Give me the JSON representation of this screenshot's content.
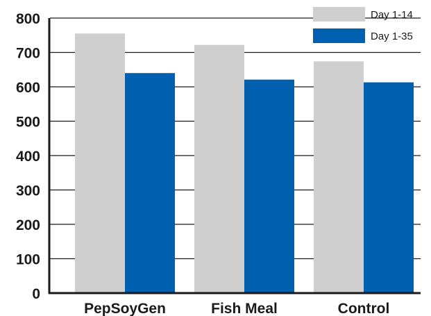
{
  "chart_data": {
    "type": "bar",
    "categories": [
      "PepSoyGen",
      "Fish Meal",
      "Control"
    ],
    "series": [
      {
        "name": "Day 1-14",
        "values": [
          755,
          722,
          674
        ],
        "color": "#cfcfcf"
      },
      {
        "name": "Day 1-35",
        "values": [
          640,
          621,
          613
        ],
        "color": "#0060b0"
      }
    ],
    "ylim": [
      0,
      800
    ],
    "yticks": [
      0,
      100,
      200,
      300,
      400,
      500,
      600,
      700,
      800
    ],
    "grid": true,
    "legend": "top-right",
    "title": "",
    "xlabel": "",
    "ylabel": ""
  }
}
